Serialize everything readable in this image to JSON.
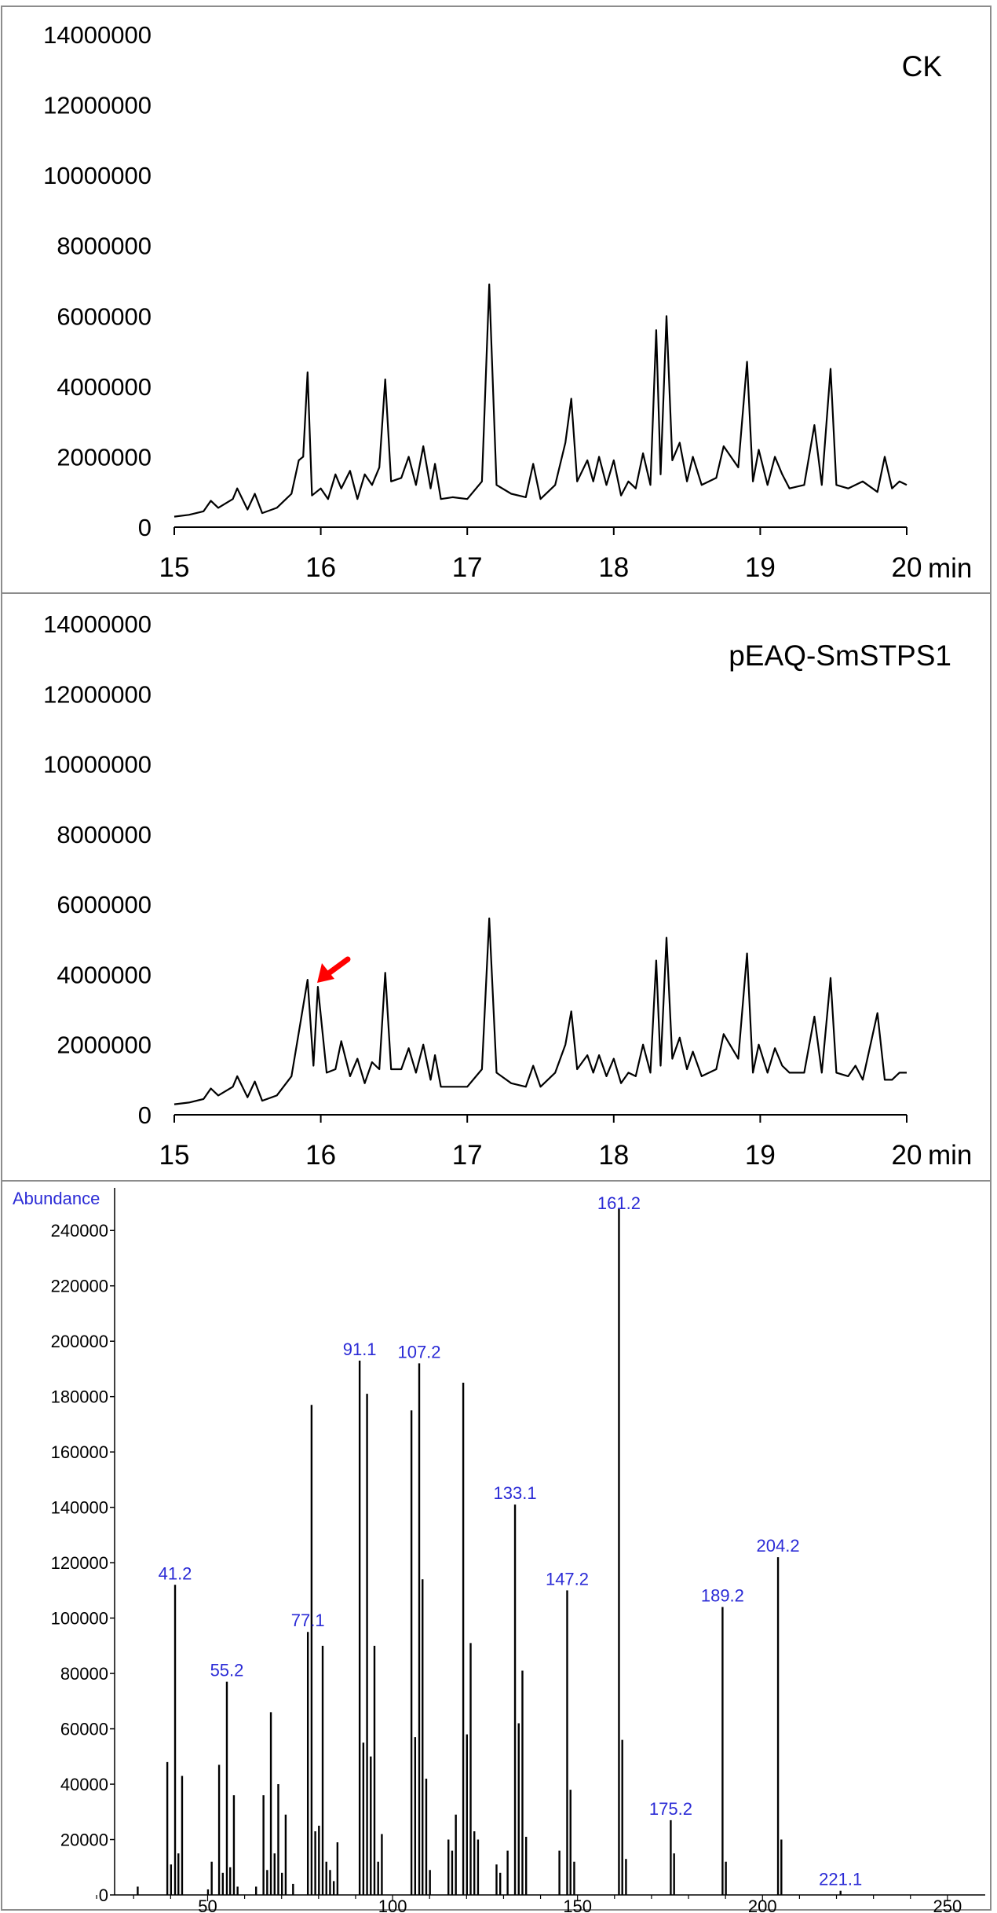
{
  "chart_data": [
    {
      "type": "line",
      "panel_label": "CK",
      "x_unit": "min",
      "xlim": [
        15,
        20
      ],
      "ylim": [
        0,
        14000000
      ],
      "x_ticks": [
        "15",
        "16",
        "17",
        "18",
        "19",
        "20"
      ],
      "y_ticks": [
        "0",
        "2000000",
        "4000000",
        "6000000",
        "8000000",
        "10000000",
        "12000000",
        "14000000"
      ],
      "series": [
        {
          "x": [
            15.0,
            15.1,
            15.2,
            15.25,
            15.3,
            15.4,
            15.43,
            15.5,
            15.55,
            15.6,
            15.7,
            15.8,
            15.85,
            15.88,
            15.91,
            15.94,
            16.0,
            16.05,
            16.1,
            16.14,
            16.2,
            16.25,
            16.3,
            16.35,
            16.4,
            16.44,
            16.48,
            16.55,
            16.6,
            16.65,
            16.7,
            16.75,
            16.78,
            16.82,
            16.9,
            17.0,
            17.1,
            17.15,
            17.2,
            17.3,
            17.4,
            17.45,
            17.5,
            17.6,
            17.67,
            17.71,
            17.75,
            17.82,
            17.86,
            17.9,
            17.95,
            18.0,
            18.05,
            18.1,
            18.15,
            18.2,
            18.25,
            18.29,
            18.32,
            18.36,
            18.4,
            18.45,
            18.5,
            18.54,
            18.6,
            18.7,
            18.75,
            18.85,
            18.91,
            18.95,
            18.99,
            19.05,
            19.1,
            19.15,
            19.2,
            19.3,
            19.37,
            19.42,
            19.48,
            19.52,
            19.6,
            19.7,
            19.8,
            19.85,
            19.9,
            19.95,
            20.0
          ],
          "y": [
            300000,
            350000,
            450000,
            750000,
            550000,
            800000,
            1100000,
            500000,
            950000,
            400000,
            550000,
            950000,
            1900000,
            2000000,
            4400000,
            900000,
            1100000,
            800000,
            1500000,
            1100000,
            1600000,
            800000,
            1500000,
            1200000,
            1700000,
            4200000,
            1300000,
            1400000,
            2000000,
            1200000,
            2300000,
            1100000,
            1800000,
            800000,
            850000,
            800000,
            1300000,
            6900000,
            1200000,
            950000,
            850000,
            1800000,
            800000,
            1200000,
            2400000,
            3650000,
            1300000,
            1900000,
            1300000,
            2000000,
            1200000,
            1900000,
            900000,
            1300000,
            1100000,
            2100000,
            1200000,
            5600000,
            1500000,
            6000000,
            1900000,
            2400000,
            1300000,
            2000000,
            1200000,
            1400000,
            2300000,
            1700000,
            4700000,
            1300000,
            2200000,
            1200000,
            2000000,
            1500000,
            1100000,
            1200000,
            2900000,
            1200000,
            4500000,
            1200000,
            1100000,
            1300000,
            1000000,
            2000000,
            1100000,
            1300000,
            1200000
          ]
        }
      ]
    },
    {
      "type": "line",
      "panel_label": "pEAQ-SmSTPS1",
      "x_unit": "min",
      "xlim": [
        15,
        20
      ],
      "ylim": [
        0,
        14000000
      ],
      "x_ticks": [
        "15",
        "16",
        "17",
        "18",
        "19",
        "20"
      ],
      "y_ticks": [
        "0",
        "2000000",
        "4000000",
        "6000000",
        "8000000",
        "10000000",
        "12000000",
        "14000000"
      ],
      "series": [
        {
          "x": [
            15.0,
            15.1,
            15.2,
            15.25,
            15.3,
            15.4,
            15.43,
            15.5,
            15.55,
            15.6,
            15.7,
            15.8,
            15.86,
            15.91,
            15.95,
            15.98,
            16.04,
            16.1,
            16.14,
            16.2,
            16.25,
            16.3,
            16.35,
            16.4,
            16.44,
            16.48,
            16.55,
            16.6,
            16.65,
            16.7,
            16.75,
            16.78,
            16.82,
            16.9,
            17.0,
            17.1,
            17.15,
            17.2,
            17.3,
            17.4,
            17.45,
            17.5,
            17.6,
            17.67,
            17.71,
            17.75,
            17.82,
            17.86,
            17.9,
            17.95,
            18.0,
            18.05,
            18.1,
            18.15,
            18.2,
            18.25,
            18.29,
            18.32,
            18.36,
            18.4,
            18.45,
            18.5,
            18.54,
            18.6,
            18.7,
            18.75,
            18.85,
            18.91,
            18.95,
            18.99,
            19.05,
            19.1,
            19.15,
            19.2,
            19.3,
            19.37,
            19.42,
            19.48,
            19.52,
            19.6,
            19.65,
            19.7,
            19.8,
            19.85,
            19.9,
            19.95,
            20.0
          ],
          "y": [
            300000,
            350000,
            450000,
            750000,
            550000,
            800000,
            1100000,
            500000,
            950000,
            400000,
            550000,
            1100000,
            2600000,
            3850000,
            1400000,
            3650000,
            1200000,
            1300000,
            2100000,
            1100000,
            1600000,
            900000,
            1500000,
            1300000,
            4050000,
            1300000,
            1300000,
            1900000,
            1200000,
            2000000,
            1000000,
            1700000,
            800000,
            800000,
            800000,
            1300000,
            5600000,
            1200000,
            900000,
            800000,
            1400000,
            800000,
            1200000,
            2000000,
            2950000,
            1300000,
            1700000,
            1200000,
            1700000,
            1100000,
            1600000,
            900000,
            1200000,
            1100000,
            2000000,
            1200000,
            4400000,
            1400000,
            5050000,
            1600000,
            2200000,
            1300000,
            1800000,
            1100000,
            1300000,
            2300000,
            1600000,
            4600000,
            1200000,
            2000000,
            1200000,
            1900000,
            1400000,
            1200000,
            1200000,
            2800000,
            1200000,
            3900000,
            1200000,
            1100000,
            1400000,
            1000000,
            2900000,
            1000000,
            1000000,
            1200000,
            1200000
          ]
        }
      ]
    },
    {
      "type": "bar",
      "ylabel": "Abundance",
      "xlim": [
        10,
        260
      ],
      "ylim": [
        0,
        250000
      ],
      "x_ticks": [
        "50",
        "100",
        "150",
        "200",
        "250"
      ],
      "y_ticks": [
        "0",
        "20000",
        "40000",
        "60000",
        "80000",
        "100000",
        "120000",
        "140000",
        "160000",
        "180000",
        "200000",
        "220000",
        "240000"
      ],
      "x": [
        31.1,
        39.1,
        40.1,
        41.2,
        42.1,
        43.1,
        50.1,
        51.1,
        53.1,
        54.1,
        55.2,
        56.1,
        57.1,
        58.1,
        63.1,
        65.1,
        66.1,
        67.1,
        68.1,
        69.1,
        70.1,
        71.1,
        73.1,
        77.1,
        78.1,
        79.1,
        80.1,
        81.1,
        82.1,
        83.1,
        84.1,
        85.1,
        91.1,
        92.1,
        93.1,
        94.1,
        95.1,
        96.1,
        97.1,
        105.1,
        106.1,
        107.2,
        108.1,
        109.1,
        110.1,
        115.1,
        116.1,
        117.1,
        119.1,
        120.1,
        121.1,
        122.1,
        123.1,
        128.1,
        129.1,
        131.1,
        133.1,
        134.1,
        135.1,
        136.1,
        145.1,
        147.2,
        148.1,
        149.1,
        161.2,
        162.1,
        163.1,
        175.2,
        176.1,
        189.2,
        190.1,
        204.2,
        205.1,
        221.1
      ],
      "values": [
        3000,
        48000,
        11000,
        112000,
        15000,
        43000,
        2000,
        12000,
        47000,
        8000,
        77000,
        10000,
        36000,
        3000,
        3000,
        36000,
        9000,
        66000,
        15000,
        40000,
        8000,
        29000,
        4000,
        95000,
        177000,
        23000,
        25000,
        90000,
        12000,
        9000,
        5000,
        19000,
        193000,
        55000,
        181000,
        50000,
        90000,
        12000,
        22000,
        175000,
        57000,
        192000,
        114000,
        42000,
        9000,
        20000,
        16000,
        29000,
        185000,
        58000,
        91000,
        23000,
        20000,
        11000,
        8000,
        16000,
        141000,
        62000,
        81000,
        21000,
        16000,
        110000,
        38000,
        12000,
        248000,
        56000,
        13000,
        27000,
        15000,
        104000,
        12000,
        122000,
        20000,
        1500
      ],
      "annotations": [
        "41.2",
        "55.2",
        "77.1",
        "91.1",
        "107.2",
        "133.1",
        "147.2",
        "161.2",
        "175.2",
        "189.2",
        "204.2",
        "221.1"
      ]
    }
  ],
  "colors": {
    "line": "#000000",
    "frame": "#8c8c8c",
    "ms_bars": "#000000",
    "ms_label_text": "#2b2bd6",
    "arrow": "#ff0000"
  }
}
